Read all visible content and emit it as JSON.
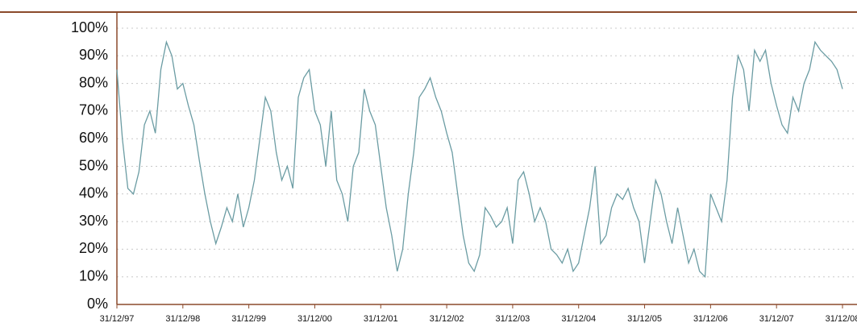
{
  "chart_data": {
    "type": "line",
    "x": [
      "1997-12",
      "1998-01",
      "1998-02",
      "1998-03",
      "1998-04",
      "1998-05",
      "1998-06",
      "1998-07",
      "1998-08",
      "1998-09",
      "1998-10",
      "1998-11",
      "1998-12",
      "1999-01",
      "1999-02",
      "1999-03",
      "1999-04",
      "1999-05",
      "1999-06",
      "1999-07",
      "1999-08",
      "1999-09",
      "1999-10",
      "1999-11",
      "1999-12",
      "2000-01",
      "2000-02",
      "2000-03",
      "2000-04",
      "2000-05",
      "2000-06",
      "2000-07",
      "2000-08",
      "2000-09",
      "2000-10",
      "2000-11",
      "2000-12",
      "2001-01",
      "2001-02",
      "2001-03",
      "2001-04",
      "2001-05",
      "2001-06",
      "2001-07",
      "2001-08",
      "2001-09",
      "2001-10",
      "2001-11",
      "2001-12",
      "2002-01",
      "2002-02",
      "2002-03",
      "2002-04",
      "2002-05",
      "2002-06",
      "2002-07",
      "2002-08",
      "2002-09",
      "2002-10",
      "2002-11",
      "2002-12",
      "2003-01",
      "2003-02",
      "2003-03",
      "2003-04",
      "2003-05",
      "2003-06",
      "2003-07",
      "2003-08",
      "2003-09",
      "2003-10",
      "2003-11",
      "2003-12",
      "2004-01",
      "2004-02",
      "2004-03",
      "2004-04",
      "2004-05",
      "2004-06",
      "2004-07",
      "2004-08",
      "2004-09",
      "2004-10",
      "2004-11",
      "2004-12",
      "2005-01",
      "2005-02",
      "2005-03",
      "2005-04",
      "2005-05",
      "2005-06",
      "2005-07",
      "2005-08",
      "2005-09",
      "2005-10",
      "2005-11",
      "2005-12",
      "2006-01",
      "2006-02",
      "2006-03",
      "2006-04",
      "2006-05",
      "2006-06",
      "2006-07",
      "2006-08",
      "2006-09",
      "2006-10",
      "2006-11",
      "2006-12",
      "2007-01",
      "2007-02",
      "2007-03",
      "2007-04",
      "2007-05",
      "2007-06",
      "2007-07",
      "2007-08",
      "2007-09",
      "2007-10",
      "2007-11",
      "2007-12",
      "2008-01",
      "2008-02",
      "2008-03",
      "2008-04",
      "2008-05",
      "2008-06",
      "2008-07",
      "2008-08",
      "2008-09",
      "2008-10",
      "2008-11",
      "2008-12"
    ],
    "series": [
      {
        "color": "#6b9ca3",
        "values": [
          85,
          60,
          42,
          40,
          48,
          65,
          70,
          62,
          85,
          95,
          90,
          78,
          80,
          72,
          65,
          52,
          40,
          30,
          22,
          28,
          35,
          30,
          40,
          28,
          35,
          45,
          60,
          75,
          70,
          55,
          45,
          50,
          42,
          75,
          82,
          85,
          70,
          65,
          50,
          70,
          45,
          40,
          30,
          50,
          55,
          78,
          70,
          65,
          50,
          35,
          25,
          12,
          20,
          40,
          55,
          75,
          78,
          82,
          75,
          70,
          62,
          55,
          40,
          25,
          15,
          12,
          18,
          35,
          32,
          28,
          30,
          35,
          22,
          45,
          48,
          40,
          30,
          35,
          30,
          20,
          18,
          15,
          20,
          12,
          15,
          25,
          35,
          50,
          22,
          25,
          35,
          40,
          38,
          42,
          35,
          30,
          15,
          30,
          45,
          40,
          30,
          22,
          35,
          25,
          15,
          20,
          12,
          10,
          40,
          35,
          30,
          45,
          75,
          90,
          85,
          70,
          92,
          88,
          92,
          80,
          72,
          65,
          62,
          75,
          70,
          80,
          85,
          95,
          92,
          90,
          88,
          85,
          78
        ]
      }
    ],
    "xlim": [
      "1997-12",
      "2008-12"
    ],
    "xticks": [
      {
        "value": "1997-12",
        "label": "31/12/97"
      },
      {
        "value": "1998-12",
        "label": "31/12/98"
      },
      {
        "value": "1999-12",
        "label": "31/12/99"
      },
      {
        "value": "2000-12",
        "label": "31/12/00"
      },
      {
        "value": "2001-12",
        "label": "31/12/01"
      },
      {
        "value": "2002-12",
        "label": "31/12/02"
      },
      {
        "value": "2003-12",
        "label": "31/12/03"
      },
      {
        "value": "2004-12",
        "label": "31/12/04"
      },
      {
        "value": "2005-12",
        "label": "31/12/05"
      },
      {
        "value": "2006-12",
        "label": "31/12/06"
      },
      {
        "value": "2007-12",
        "label": "31/12/07"
      },
      {
        "value": "2008-12",
        "label": "31/12/08"
      }
    ],
    "ylim": [
      0,
      100
    ],
    "yticks": [
      {
        "value": 0,
        "label": "0%"
      },
      {
        "value": 10,
        "label": "10%"
      },
      {
        "value": 20,
        "label": "20%"
      },
      {
        "value": 30,
        "label": "30%"
      },
      {
        "value": 40,
        "label": "40%"
      },
      {
        "value": 50,
        "label": "50%"
      },
      {
        "value": 60,
        "label": "60%"
      },
      {
        "value": 70,
        "label": "70%"
      },
      {
        "value": 80,
        "label": "80%"
      },
      {
        "value": 90,
        "label": "90%"
      },
      {
        "value": 100,
        "label": "100%"
      }
    ],
    "grid": true
  }
}
